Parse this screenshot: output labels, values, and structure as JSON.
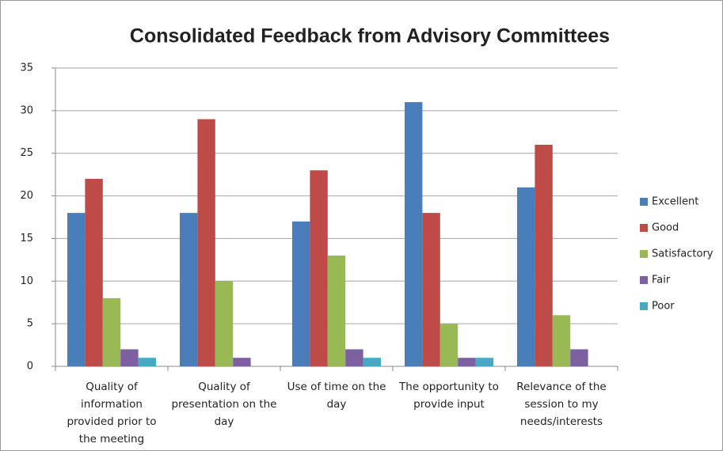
{
  "chart_data": {
    "type": "bar",
    "title": "Consolidated Feedback from Advisory Committees",
    "categories": [
      "Quality of information provided prior to the meeting",
      "Quality of presentation on the day",
      "Use of time on the day",
      "The opportunity to provide input",
      "Relevance of the session to my needs/interests"
    ],
    "series": [
      {
        "name": "Excellent",
        "color": "#4a7ebb",
        "values": [
          18,
          18,
          17,
          31,
          21
        ]
      },
      {
        "name": "Good",
        "color": "#be4b48",
        "values": [
          22,
          29,
          23,
          18,
          26
        ]
      },
      {
        "name": "Satisfactory",
        "color": "#98b954",
        "values": [
          8,
          10,
          13,
          5,
          6
        ]
      },
      {
        "name": "Fair",
        "color": "#7d60a0",
        "values": [
          2,
          1,
          2,
          1,
          2
        ]
      },
      {
        "name": "Poor",
        "color": "#46aac5",
        "values": [
          1,
          0,
          1,
          1,
          0
        ]
      }
    ],
    "ylim": [
      0,
      35
    ],
    "yticks": [
      0,
      5,
      10,
      15,
      20,
      25,
      30,
      35
    ],
    "grid": true,
    "legend": "right"
  }
}
